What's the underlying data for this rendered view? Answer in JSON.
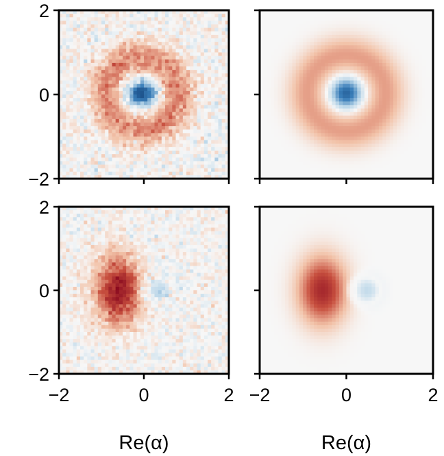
{
  "chart_data": [
    {
      "type": "heatmap",
      "panel": "top-left",
      "kind": "measured (noisy)",
      "pattern": "ring",
      "xlim": [
        -2,
        2
      ],
      "ylim": [
        -2,
        2
      ],
      "x_ticks": [
        -2,
        0,
        2
      ],
      "y_ticks": [
        -2,
        0,
        2
      ],
      "x_tick_labels_shown": false,
      "y_tick_labels_shown": true,
      "xlabel": "",
      "colormap": "RdBu diverging",
      "center": [
        -0.05,
        0.02
      ],
      "core_value": -0.9,
      "core_sigma": 0.22,
      "ring_value": 0.42,
      "ring_radius": 0.85,
      "ring_width": 0.28,
      "noise_level": 0.08
    },
    {
      "type": "heatmap",
      "panel": "top-right",
      "kind": "simulated (smooth)",
      "pattern": "ring",
      "xlim": [
        -2,
        2
      ],
      "ylim": [
        -2,
        2
      ],
      "x_ticks": [
        -2,
        0,
        2
      ],
      "y_ticks": [
        -2,
        0,
        2
      ],
      "x_tick_labels_shown": false,
      "y_tick_labels_shown": false,
      "xlabel": "",
      "colormap": "RdBu diverging",
      "center": [
        0.0,
        0.03
      ],
      "core_value": -0.75,
      "core_sigma": 0.25,
      "ring_value": 0.36,
      "ring_radius": 0.9,
      "ring_width": 0.32,
      "noise_level": 0
    },
    {
      "type": "heatmap",
      "panel": "bottom-left",
      "kind": "measured (noisy)",
      "pattern": "crescent",
      "xlim": [
        -2,
        2
      ],
      "ylim": [
        -2,
        2
      ],
      "x_ticks": [
        -2,
        0,
        2
      ],
      "y_ticks": [
        -2,
        0,
        2
      ],
      "x_tick_labels_shown": true,
      "y_tick_labels_shown": true,
      "xlabel": "Re(α)",
      "colormap": "RdBu diverging",
      "positive_lobe_center": [
        -0.6,
        0.0
      ],
      "positive_value": 0.9,
      "negative_lobe_center": [
        0.33,
        0.0
      ],
      "negative_value": -0.3,
      "noise_level": 0.07
    },
    {
      "type": "heatmap",
      "panel": "bottom-right",
      "kind": "simulated (smooth)",
      "pattern": "crescent",
      "xlim": [
        -2,
        2
      ],
      "ylim": [
        -2,
        2
      ],
      "x_ticks": [
        -2,
        0,
        2
      ],
      "y_ticks": [
        -2,
        0,
        2
      ],
      "x_tick_labels_shown": true,
      "y_tick_labels_shown": false,
      "xlabel": "Re(α)",
      "colormap": "RdBu diverging",
      "positive_lobe_center": [
        -0.55,
        0.0
      ],
      "positive_value": 0.82,
      "negative_lobe_center": [
        0.45,
        0.0
      ],
      "negative_value": -0.25,
      "noise_level": 0
    }
  ],
  "colors": {
    "deep_red": "#8b0a1f",
    "red": "#c8503f",
    "light_red": "#f2c2a8",
    "white": "#f7f7f7",
    "light_blue": "#bfd9ea",
    "blue": "#3b7fba",
    "deep_blue": "#0d3b73",
    "axis": "#000000"
  }
}
